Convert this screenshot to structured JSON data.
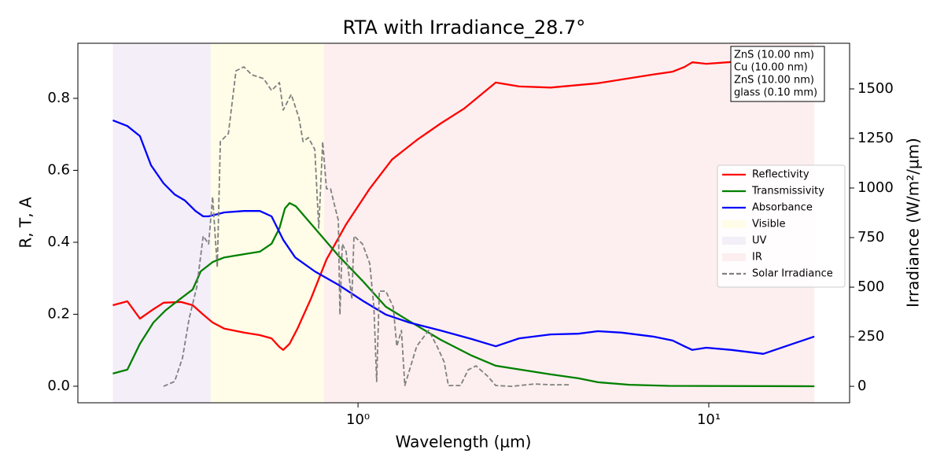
{
  "chart_data": {
    "type": "line",
    "title": "RTA with Irradiance_28.7°",
    "xlabel": "Wavelength (µm)",
    "ylabel": "R, T, A",
    "y2label": "Irradiance (W/m²/µm)",
    "xscale": "log",
    "xlim": [
      0.159,
      25.2
    ],
    "xticks": [
      {
        "value": 1,
        "label": "10⁰"
      },
      {
        "value": 10,
        "label": "10¹"
      }
    ],
    "ylim": [
      -0.046,
      0.953
    ],
    "yticks": [
      {
        "value": 0,
        "label": "0.0"
      },
      0.2,
      0.4,
      0.6,
      0.8
    ],
    "y2lim": [
      -83,
      1730
    ],
    "y2ticks": [
      0,
      250,
      500,
      750,
      1000,
      1250,
      1500
    ],
    "legend_loc": "right",
    "annotation": [
      "ZnS (10.00 nm)",
      "Cu (10.00 nm)",
      "ZnS (10.00 nm)",
      "glass (0.10 mm)"
    ],
    "regions": [
      {
        "name": "Visible",
        "color": "#fffde8",
        "range": [
          0.38,
          0.8
        ]
      },
      {
        "name": "UV",
        "color": "#f3eef8",
        "range": [
          0.2,
          0.38
        ]
      },
      {
        "name": "IR",
        "color": "#fdefef",
        "range": [
          0.8,
          20
        ]
      }
    ],
    "series": [
      {
        "name": "Reflectivity",
        "color": "#ff0000",
        "x": [
          0.2,
          0.22,
          0.239,
          0.261,
          0.279,
          0.313,
          0.338,
          0.362,
          0.385,
          0.416,
          0.473,
          0.525,
          0.567,
          0.597,
          0.612,
          0.638,
          0.672,
          0.734,
          0.813,
          0.925,
          1.08,
          1.25,
          1.47,
          1.72,
          2.01,
          2.47,
          2.88,
          3.54,
          4.83,
          6.93,
          7.89,
          8.52,
          8.97,
          9.84,
          11.6,
          13.6,
          20
        ],
        "values": [
          0.225,
          0.236,
          0.188,
          0.214,
          0.232,
          0.234,
          0.225,
          0.199,
          0.177,
          0.16,
          0.149,
          0.142,
          0.133,
          0.109,
          0.101,
          0.118,
          0.16,
          0.243,
          0.352,
          0.45,
          0.549,
          0.63,
          0.684,
          0.73,
          0.772,
          0.844,
          0.833,
          0.83,
          0.842,
          0.866,
          0.874,
          0.887,
          0.9,
          0.896,
          0.901,
          0.907,
          0.866
        ]
      },
      {
        "name": "Transmissivity",
        "color": "#008000",
        "x": [
          0.2,
          0.22,
          0.239,
          0.261,
          0.282,
          0.305,
          0.338,
          0.356,
          0.385,
          0.416,
          0.473,
          0.525,
          0.567,
          0.597,
          0.619,
          0.638,
          0.665,
          0.753,
          0.879,
          1.03,
          1.2,
          1.4,
          1.72,
          2.11,
          2.47,
          3.54,
          4.25,
          4.83,
          5.94,
          7.69,
          20
        ],
        "values": [
          0.035,
          0.046,
          0.118,
          0.177,
          0.21,
          0.236,
          0.269,
          0.319,
          0.345,
          0.358,
          0.367,
          0.374,
          0.396,
          0.439,
          0.494,
          0.509,
          0.5,
          0.439,
          0.363,
          0.293,
          0.221,
          0.181,
          0.129,
          0.085,
          0.057,
          0.033,
          0.022,
          0.011,
          0.004,
          0.001,
          0
        ]
      },
      {
        "name": "Absorbance",
        "color": "#0000ff",
        "x": [
          0.2,
          0.22,
          0.239,
          0.257,
          0.279,
          0.3,
          0.321,
          0.344,
          0.362,
          0.375,
          0.416,
          0.473,
          0.525,
          0.567,
          0.612,
          0.662,
          0.753,
          0.879,
          1.03,
          1.2,
          1.4,
          1.72,
          2.11,
          2.47,
          2.88,
          3.54,
          4.25,
          4.83,
          5.64,
          6.93,
          7.89,
          8.52,
          8.97,
          9.84,
          11.6,
          14.3,
          20
        ],
        "values": [
          0.739,
          0.723,
          0.695,
          0.614,
          0.564,
          0.533,
          0.516,
          0.487,
          0.472,
          0.472,
          0.483,
          0.487,
          0.487,
          0.472,
          0.407,
          0.358,
          0.319,
          0.282,
          0.238,
          0.199,
          0.177,
          0.155,
          0.131,
          0.111,
          0.133,
          0.144,
          0.146,
          0.153,
          0.149,
          0.138,
          0.127,
          0.111,
          0.101,
          0.107,
          0.101,
          0.09,
          0.138
        ]
      },
      {
        "name": "Solar Irradiance",
        "color": "#808080",
        "axis": "y2",
        "dash": true,
        "x": [
          0.279,
          0.3,
          0.316,
          0.33,
          0.347,
          0.362,
          0.375,
          0.385,
          0.397,
          0.405,
          0.427,
          0.449,
          0.473,
          0.498,
          0.538,
          0.567,
          0.597,
          0.612,
          0.645,
          0.679,
          0.697,
          0.722,
          0.753,
          0.773,
          0.793,
          0.813,
          0.835,
          0.856,
          0.879,
          0.888,
          0.902,
          0.925,
          0.96,
          0.974,
          1.03,
          1.08,
          1.11,
          1.13,
          1.15,
          1.2,
          1.26,
          1.29,
          1.33,
          1.36,
          1.47,
          1.59,
          1.68,
          1.76,
          1.81,
          1.96,
          2.06,
          2.17,
          2.34,
          2.47,
          2.74,
          3.19,
          3.54,
          4.01
        ],
        "values": [
          0,
          24,
          143,
          341,
          500,
          758,
          718,
          956,
          599,
          1234,
          1274,
          1591,
          1611,
          1571,
          1552,
          1492,
          1532,
          1393,
          1472,
          1353,
          1234,
          1254,
          1194,
          798,
          1234,
          996,
          996,
          917,
          837,
          361,
          718,
          679,
          440,
          758,
          718,
          619,
          401,
          24,
          480,
          480,
          401,
          202,
          282,
          4,
          202,
          282,
          202,
          123,
          4,
          4,
          83,
          103,
          52,
          4,
          0,
          12,
          8,
          8
        ]
      }
    ]
  }
}
